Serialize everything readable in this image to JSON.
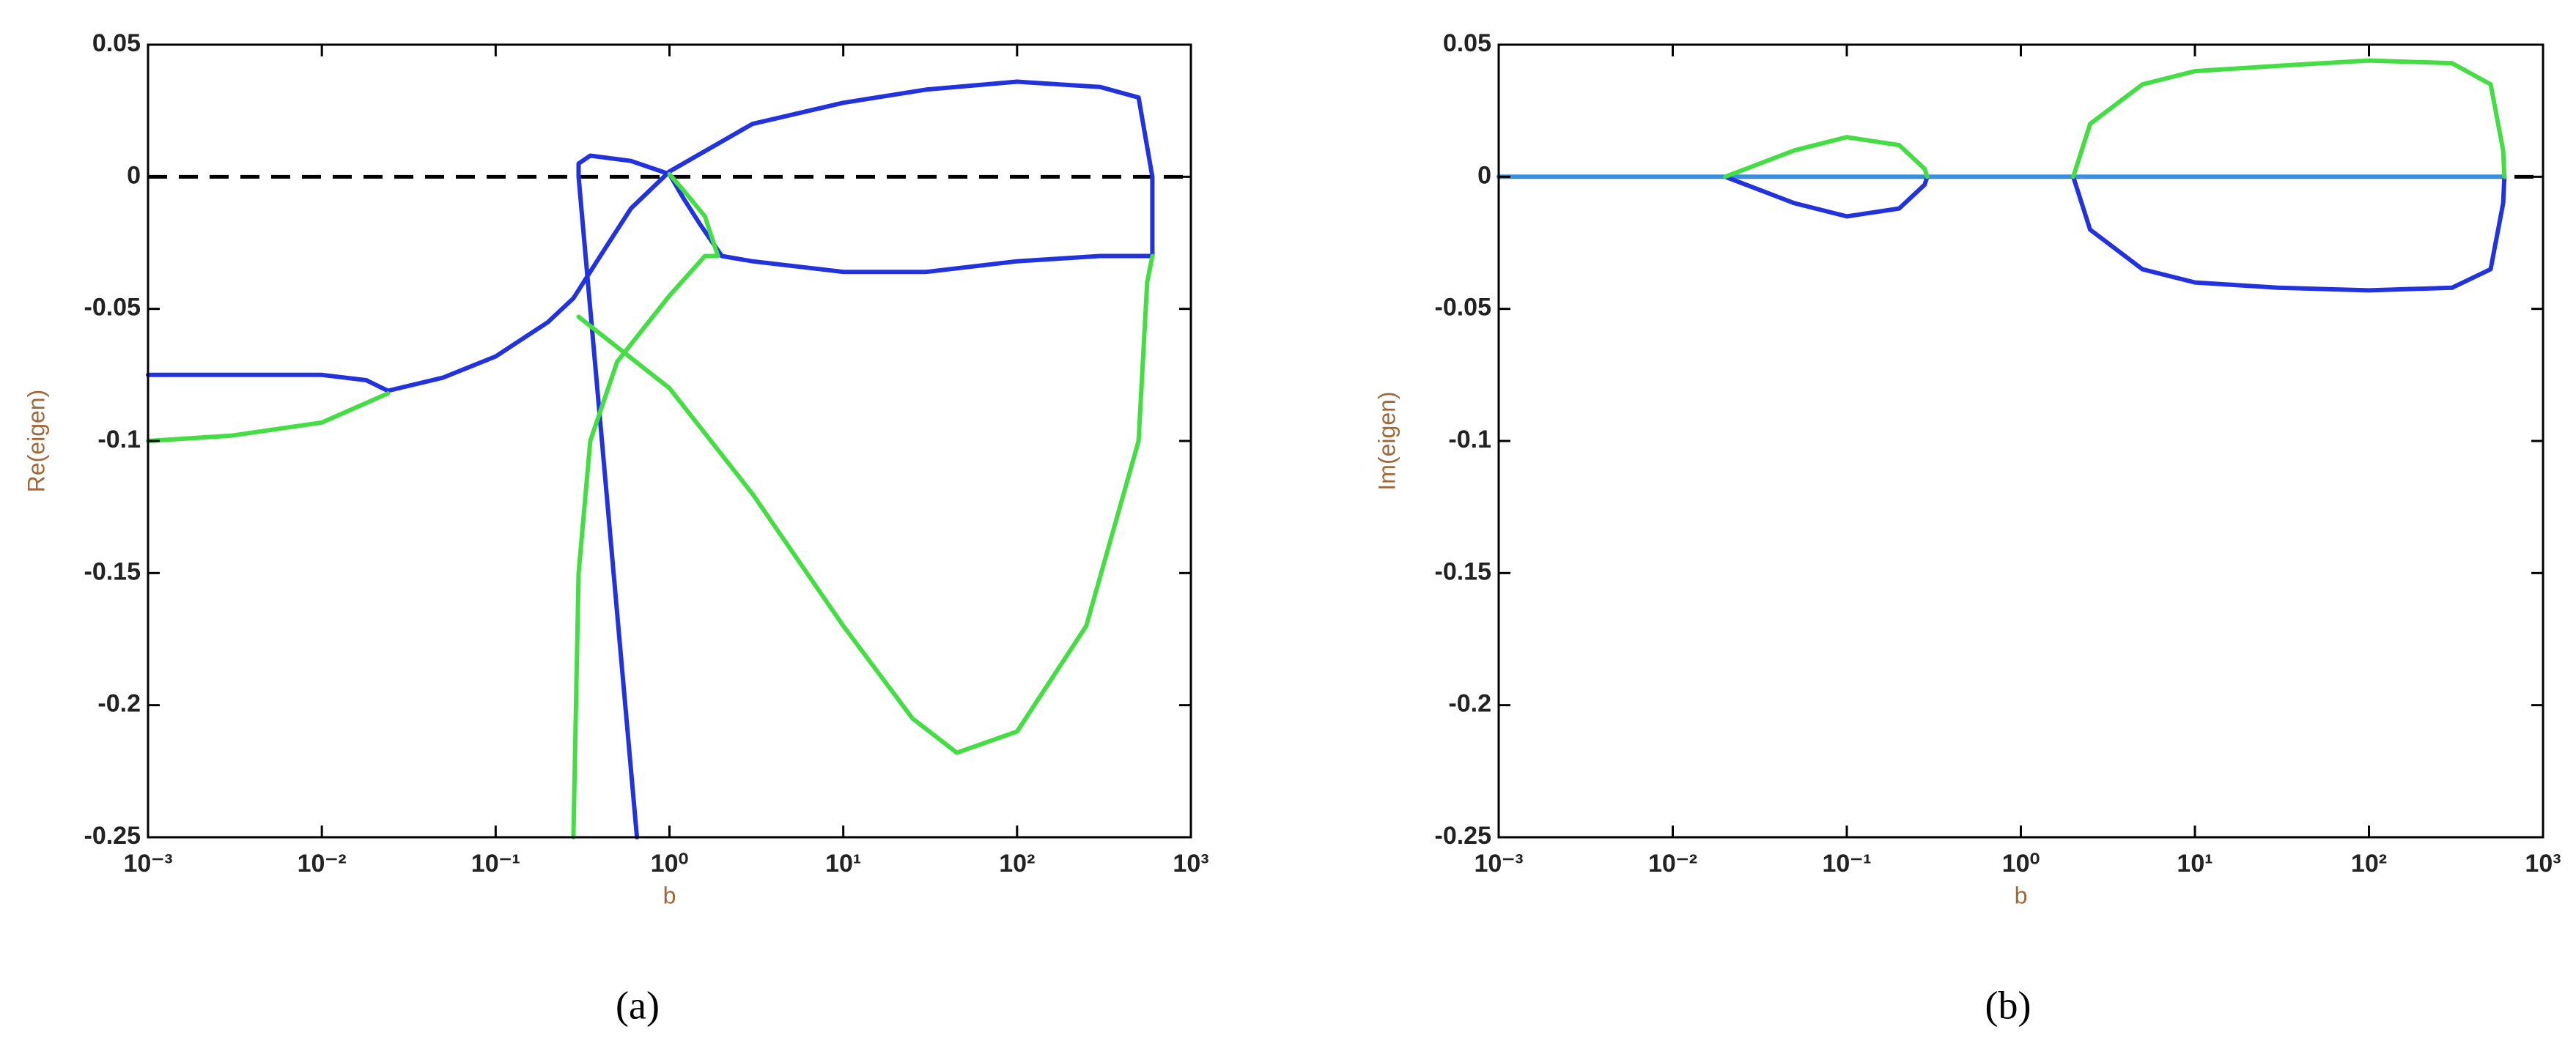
{
  "chart_data": [
    {
      "type": "line",
      "xlabel": "b",
      "ylabel": "Re(eigen)",
      "caption": "(a)",
      "xscale": "log",
      "xlim": [
        0.001,
        1000
      ],
      "ylim": [
        -0.25,
        0.05
      ],
      "xticks": [
        {
          "value": 0.001,
          "label": "10⁻³"
        },
        {
          "value": 0.01,
          "label": "10⁻²"
        },
        {
          "value": 0.1,
          "label": "10⁻¹"
        },
        {
          "value": 1,
          "label": "10⁰"
        },
        {
          "value": 10,
          "label": "10¹"
        },
        {
          "value": 100,
          "label": "10²"
        },
        {
          "value": 1000,
          "label": "10³"
        }
      ],
      "yticks": [
        0.05,
        0,
        -0.05,
        -0.1,
        -0.15,
        -0.2,
        -0.25
      ],
      "hline": {
        "value": 0,
        "color": "#000000"
      },
      "series": [
        {
          "color": "#2233dd",
          "x": [
            0.001,
            0.003,
            0.01,
            0.018,
            0.024,
            0.05,
            0.1,
            0.2,
            0.28,
            0.4,
            0.6,
            1,
            3,
            10,
            30,
            100,
            300,
            500,
            600,
            600,
            300,
            100,
            30,
            10,
            3,
            2,
            1.5,
            1.2,
            1,
            0.6,
            0.35,
            0.3,
            0.3,
            0.65
          ],
          "values": [
            -0.075,
            -0.075,
            -0.075,
            -0.077,
            -0.081,
            -0.076,
            -0.068,
            -0.055,
            -0.046,
            -0.03,
            -0.012,
            0.002,
            0.02,
            0.028,
            0.033,
            0.036,
            0.034,
            0.03,
            0,
            -0.03,
            -0.03,
            -0.032,
            -0.036,
            -0.036,
            -0.032,
            -0.03,
            -0.018,
            -0.008,
            0.001,
            0.006,
            0.008,
            0.005,
            0,
            -0.25
          ]
        },
        {
          "color": "#44dd44",
          "x": [
            0.001,
            0.003,
            0.01,
            0.024,
            null,
            0.3,
            1,
            3,
            10,
            25,
            45,
            100,
            250,
            500,
            560,
            600,
            null,
            0.28,
            0.3,
            0.35,
            0.5,
            1,
            1.6,
            1.9,
            1.6,
            1.2,
            1
          ],
          "values": [
            -0.1,
            -0.098,
            -0.093,
            -0.082,
            null,
            -0.053,
            -0.08,
            -0.12,
            -0.17,
            -0.205,
            -0.218,
            -0.21,
            -0.17,
            -0.1,
            -0.04,
            -0.03,
            null,
            -0.25,
            -0.15,
            -0.1,
            -0.07,
            -0.045,
            -0.03,
            -0.03,
            -0.015,
            -0.005,
            0.001
          ]
        }
      ]
    },
    {
      "type": "line",
      "xlabel": "b",
      "ylabel": "Im(eigen)",
      "caption": "(b)",
      "xscale": "log",
      "xlim": [
        0.001,
        1000
      ],
      "ylim": [
        -0.25,
        0.05
      ],
      "xticks": [
        {
          "value": 0.001,
          "label": "10⁻³"
        },
        {
          "value": 0.01,
          "label": "10⁻²"
        },
        {
          "value": 0.1,
          "label": "10⁻¹"
        },
        {
          "value": 1,
          "label": "10⁰"
        },
        {
          "value": 10,
          "label": "10¹"
        },
        {
          "value": 100,
          "label": "10²"
        },
        {
          "value": 1000,
          "label": "10³"
        }
      ],
      "yticks": [
        0.05,
        0,
        -0.05,
        -0.1,
        -0.15,
        -0.2,
        -0.25
      ],
      "hline": {
        "value": 0,
        "color": "#000000"
      },
      "series": [
        {
          "color": "#3a8ee0",
          "x": [
            0.001,
            600
          ],
          "values": [
            0,
            0
          ]
        },
        {
          "color": "#2233dd",
          "x": [
            0.02,
            0.05,
            0.1,
            0.2,
            0.28,
            0.29,
            null,
            2,
            2.5,
            5,
            10,
            30,
            100,
            300,
            500,
            590,
            600
          ],
          "values": [
            0,
            -0.01,
            -0.015,
            -0.012,
            -0.003,
            0,
            null,
            0,
            -0.02,
            -0.035,
            -0.04,
            -0.042,
            -0.043,
            -0.042,
            -0.035,
            -0.01,
            0
          ]
        },
        {
          "color": "#44dd44",
          "x": [
            0.02,
            0.05,
            0.1,
            0.2,
            0.28,
            0.29,
            null,
            2,
            2.5,
            5,
            10,
            30,
            100,
            300,
            500,
            590,
            600
          ],
          "values": [
            0,
            0.01,
            0.015,
            0.012,
            0.003,
            0,
            null,
            0,
            0.02,
            0.035,
            0.04,
            0.042,
            0.044,
            0.043,
            0.035,
            0.01,
            0
          ]
        }
      ]
    }
  ]
}
